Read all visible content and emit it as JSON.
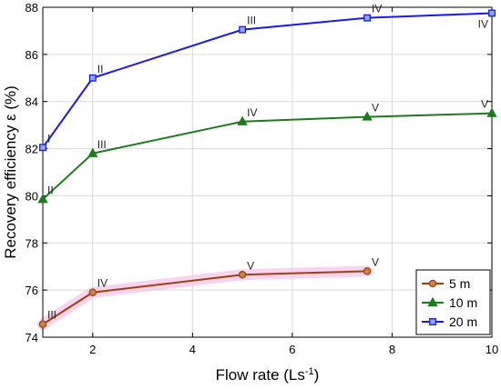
{
  "chart_data": {
    "type": "line",
    "title": "",
    "xlabel": "Flow rate (Ls",
    "xlabel_sup": "-1",
    "xlabel_close": ")",
    "ylabel": "Recovery efficiency ε (%)",
    "xlim": [
      1,
      10
    ],
    "ylim": [
      74,
      88
    ],
    "xticks": [
      2,
      4,
      6,
      8,
      10
    ],
    "yticks": [
      74,
      76,
      78,
      80,
      82,
      84,
      86,
      88
    ],
    "grid": true,
    "legend_position": "bottom-right",
    "series": [
      {
        "name": "5 m",
        "color": "#a0400f",
        "marker": "circle",
        "x": [
          1,
          2,
          5,
          7.5
        ],
        "y": [
          74.55,
          75.9,
          76.65,
          76.8
        ],
        "labels": [
          "III",
          "IV",
          "V",
          "V"
        ]
      },
      {
        "name": "10 m",
        "color": "#1e7a1e",
        "marker": "triangle",
        "x": [
          1,
          2,
          5,
          7.5,
          10
        ],
        "y": [
          79.85,
          81.8,
          83.15,
          83.35,
          83.5
        ],
        "labels": [
          "II",
          "III",
          "IV",
          "V",
          "V"
        ]
      },
      {
        "name": "20 m",
        "color": "#1a1ae6",
        "marker": "square",
        "x": [
          1,
          2,
          5,
          7.5,
          10
        ],
        "y": [
          82.05,
          85.0,
          87.05,
          87.55,
          87.75
        ],
        "labels": [
          "I",
          "II",
          "III",
          "IV",
          "IV"
        ]
      }
    ]
  }
}
